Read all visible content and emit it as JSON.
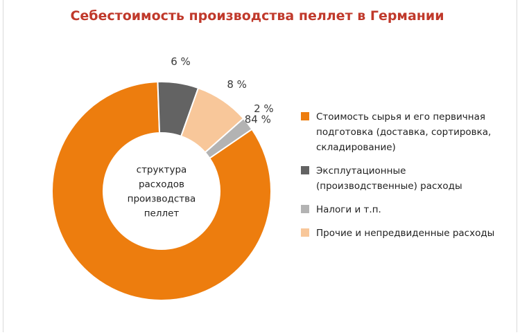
{
  "chart_data": {
    "type": "pie",
    "title": "Себестоимость производства пеллет в Германии",
    "center_label": [
      "структура",
      "расходов",
      "производства",
      "пеллет"
    ],
    "categories": [
      "Стоимость сырья и его  первичная\nподготовка (доставка, сортировка,\nскладирование)",
      "Эксплутационные\n(производственные) расходы",
      "Налоги и т.п.",
      "Прочие и непредвиденные расходы"
    ],
    "values": [
      84,
      6,
      2,
      8
    ],
    "value_labels": [
      "84 %",
      "6 %",
      "2 %",
      "8 %"
    ],
    "slice_order": [
      0,
      1,
      3,
      2
    ],
    "colors": [
      "#ed7d0e",
      "#636363",
      "#b3b3b3",
      "#f8c79a"
    ],
    "legend_placement": "right",
    "donut": true
  }
}
